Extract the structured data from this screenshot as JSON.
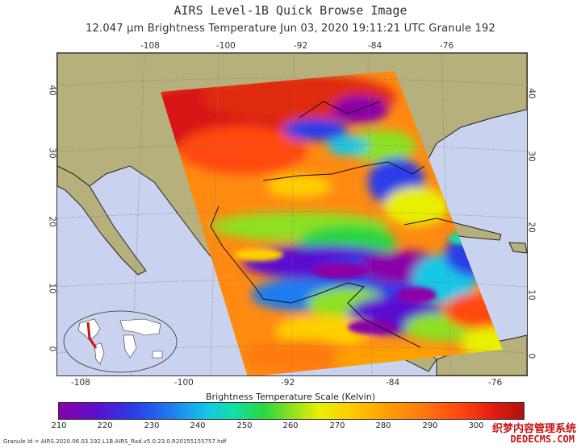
{
  "header": {
    "title": "AIRS Level-1B Quick Browse Image",
    "subtitle": "12.047 μm Brightness Temperature    Jun 03, 2020 19:11:21 UTC   Granule 192"
  },
  "map": {
    "top_lon_labels": [
      "-108",
      "-100",
      "-92",
      "-84",
      "-76"
    ],
    "bottom_lon_labels": [
      "-108",
      "-100",
      "-92",
      "-84",
      "-76"
    ],
    "left_lat_labels": [
      "40",
      "30",
      "20",
      "10",
      "0"
    ],
    "right_lat_labels": [
      "40",
      "30",
      "20",
      "10",
      "0"
    ],
    "ocean_color": "#c9d2ee",
    "land_color": "#b6b07c"
  },
  "colorbar": {
    "title": "Brightness Temperature Scale (Kelvin)",
    "ticks": [
      "210",
      "220",
      "230",
      "240",
      "250",
      "260",
      "270",
      "280",
      "290",
      "300"
    ],
    "min": 210,
    "max": 310
  },
  "footer": {
    "granule_id": "Granule Id = AIRS.2020.06.03.192.L1B.AIRS_Rad.v5.0.23.0.R20155155757.hdf"
  },
  "watermark": {
    "line1": "织梦内容管理系统",
    "line2": "DEDECMS.COM"
  }
}
